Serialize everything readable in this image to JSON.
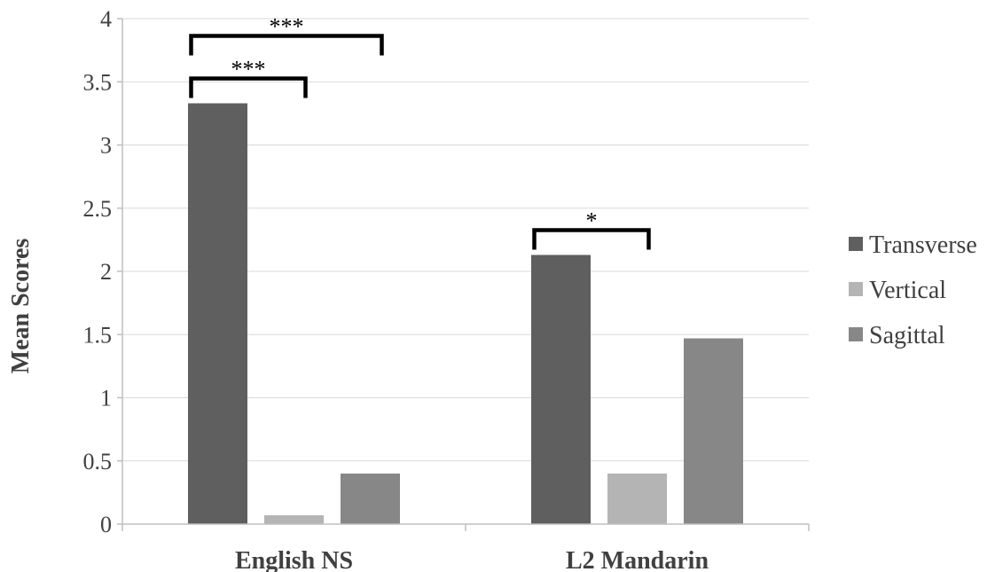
{
  "chart_data": {
    "type": "bar",
    "title": "",
    "xlabel": "",
    "ylabel": "Mean Scores",
    "ylim": [
      0,
      4
    ],
    "yticks": [
      "0",
      "0.5",
      "1",
      "1.5",
      "2",
      "2.5",
      "3",
      "3.5",
      "4"
    ],
    "grid": true,
    "legend_position": "right",
    "categories": [
      "English NS",
      "L2 Mandarin"
    ],
    "series": [
      {
        "name": "Transverse",
        "color": "#5f5f5f",
        "values": [
          3.33,
          2.13
        ]
      },
      {
        "name": "Vertical",
        "color": "#b4b4b4",
        "values": [
          0.07,
          0.4
        ]
      },
      {
        "name": "Sagittal",
        "color": "#878787",
        "values": [
          0.4,
          1.47
        ]
      }
    ],
    "annotations": [
      {
        "category": "English NS",
        "from": "Transverse",
        "to": "Sagittal",
        "label": "***"
      },
      {
        "category": "English NS",
        "from": "Transverse",
        "to": "Vertical",
        "label": "***"
      },
      {
        "category": "L2 Mandarin",
        "from": "Transverse",
        "to": "Vertical",
        "label": "*"
      }
    ]
  }
}
